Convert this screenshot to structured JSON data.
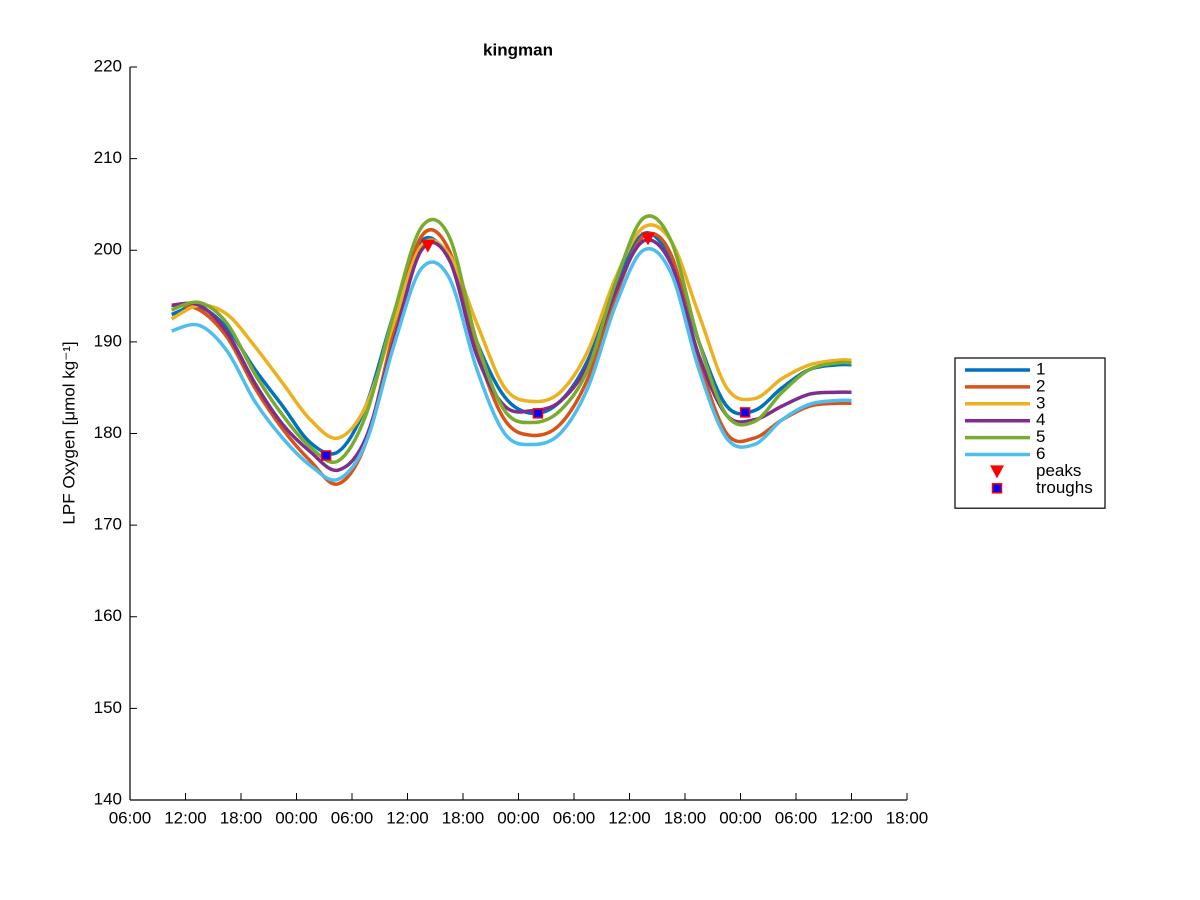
{
  "chart_data": {
    "type": "line",
    "title": "kingman",
    "ylabel": "LPF Oxygen [μmol kg⁻¹]",
    "x": [
      4.5,
      7.5,
      10.5,
      13.5,
      16.5,
      19.5,
      22.5,
      25.5,
      28.5,
      31.5,
      34.5,
      37.5,
      40.5,
      43.5,
      46.5,
      49.5,
      52.5,
      55.5,
      58.5,
      61.5,
      64.5,
      67.5,
      70.5,
      73.5,
      76.5,
      78
    ],
    "series": [
      {
        "name": "1",
        "color": "#0072bd",
        "values": [
          193,
          193.8,
          191.5,
          187,
          183,
          179,
          178,
          183,
          193,
          201,
          199,
          190,
          184,
          182.2,
          183.5,
          188,
          196,
          201.8,
          199,
          190,
          183,
          182.5,
          185,
          187,
          187.5,
          187.5
        ]
      },
      {
        "name": "2",
        "color": "#d95319",
        "values": [
          194,
          193.5,
          190.5,
          185,
          180.5,
          177,
          174.5,
          179,
          191,
          201.5,
          200,
          189,
          181.5,
          179.8,
          181,
          186,
          195,
          201.5,
          199.5,
          188,
          180,
          179.5,
          181.5,
          183,
          183.3,
          183.3
        ]
      },
      {
        "name": "3",
        "color": "#edb120",
        "values": [
          192.5,
          194,
          193,
          189.5,
          185.5,
          181.5,
          179.5,
          183,
          192,
          200.5,
          199.5,
          192,
          185,
          183.5,
          184.5,
          189,
          197,
          202.5,
          201,
          193,
          185,
          183.8,
          186,
          187.5,
          188,
          188
        ]
      },
      {
        "name": "4",
        "color": "#7e2f8e",
        "values": [
          194,
          194,
          191,
          185.5,
          181,
          178,
          176,
          179.5,
          190,
          200,
          199,
          188.5,
          183,
          182.5,
          183.5,
          187.5,
          195.5,
          201,
          198.5,
          188.5,
          182,
          181.5,
          183,
          184.3,
          184.5,
          184.5
        ]
      },
      {
        "name": "5",
        "color": "#77ac30",
        "values": [
          193.5,
          194.3,
          192,
          186.5,
          182,
          178.5,
          177,
          182,
          193,
          202.5,
          201.5,
          190,
          182.5,
          181.2,
          182.5,
          187,
          196.5,
          203.5,
          201,
          190,
          182,
          181.3,
          184.5,
          187,
          187.7,
          187.7
        ]
      },
      {
        "name": "6",
        "color": "#4dbeee",
        "values": [
          191.2,
          191.8,
          189,
          183.5,
          179.5,
          176.5,
          175,
          179,
          189.5,
          198,
          197,
          187,
          180,
          178.8,
          180,
          185,
          194,
          200,
          197.5,
          187,
          179.5,
          178.8,
          181.5,
          183.2,
          183.6,
          183.6
        ]
      }
    ],
    "markers": [
      {
        "name": "peaks",
        "marker": "triangle-down",
        "color": "#ff0000",
        "x": [
          32.2,
          56.0
        ],
        "values": [
          200.5,
          201.3
        ]
      },
      {
        "name": "troughs",
        "marker": "square",
        "color": "#0000ff",
        "edge": "#ff0000",
        "x": [
          21.2,
          44.1,
          66.5
        ],
        "values": [
          177.6,
          182.2,
          182.3
        ]
      }
    ],
    "xlim": [
      0,
      84
    ],
    "xticks": [
      {
        "value": 0,
        "label": "06:00"
      },
      {
        "value": 6,
        "label": "12:00"
      },
      {
        "value": 12,
        "label": "18:00"
      },
      {
        "value": 18,
        "label": "00:00"
      },
      {
        "value": 24,
        "label": "06:00"
      },
      {
        "value": 30,
        "label": "12:00"
      },
      {
        "value": 36,
        "label": "18:00"
      },
      {
        "value": 42,
        "label": "00:00"
      },
      {
        "value": 48,
        "label": "06:00"
      },
      {
        "value": 54,
        "label": "12:00"
      },
      {
        "value": 60,
        "label": "18:00"
      },
      {
        "value": 66,
        "label": "00:00"
      },
      {
        "value": 72,
        "label": "06:00"
      },
      {
        "value": 78,
        "label": "12:00"
      },
      {
        "value": 84,
        "label": "18:00"
      }
    ],
    "ylim": [
      140,
      220
    ],
    "yticks": [
      140,
      150,
      160,
      170,
      180,
      190,
      200,
      210,
      220
    ],
    "legend": "outside-right"
  }
}
